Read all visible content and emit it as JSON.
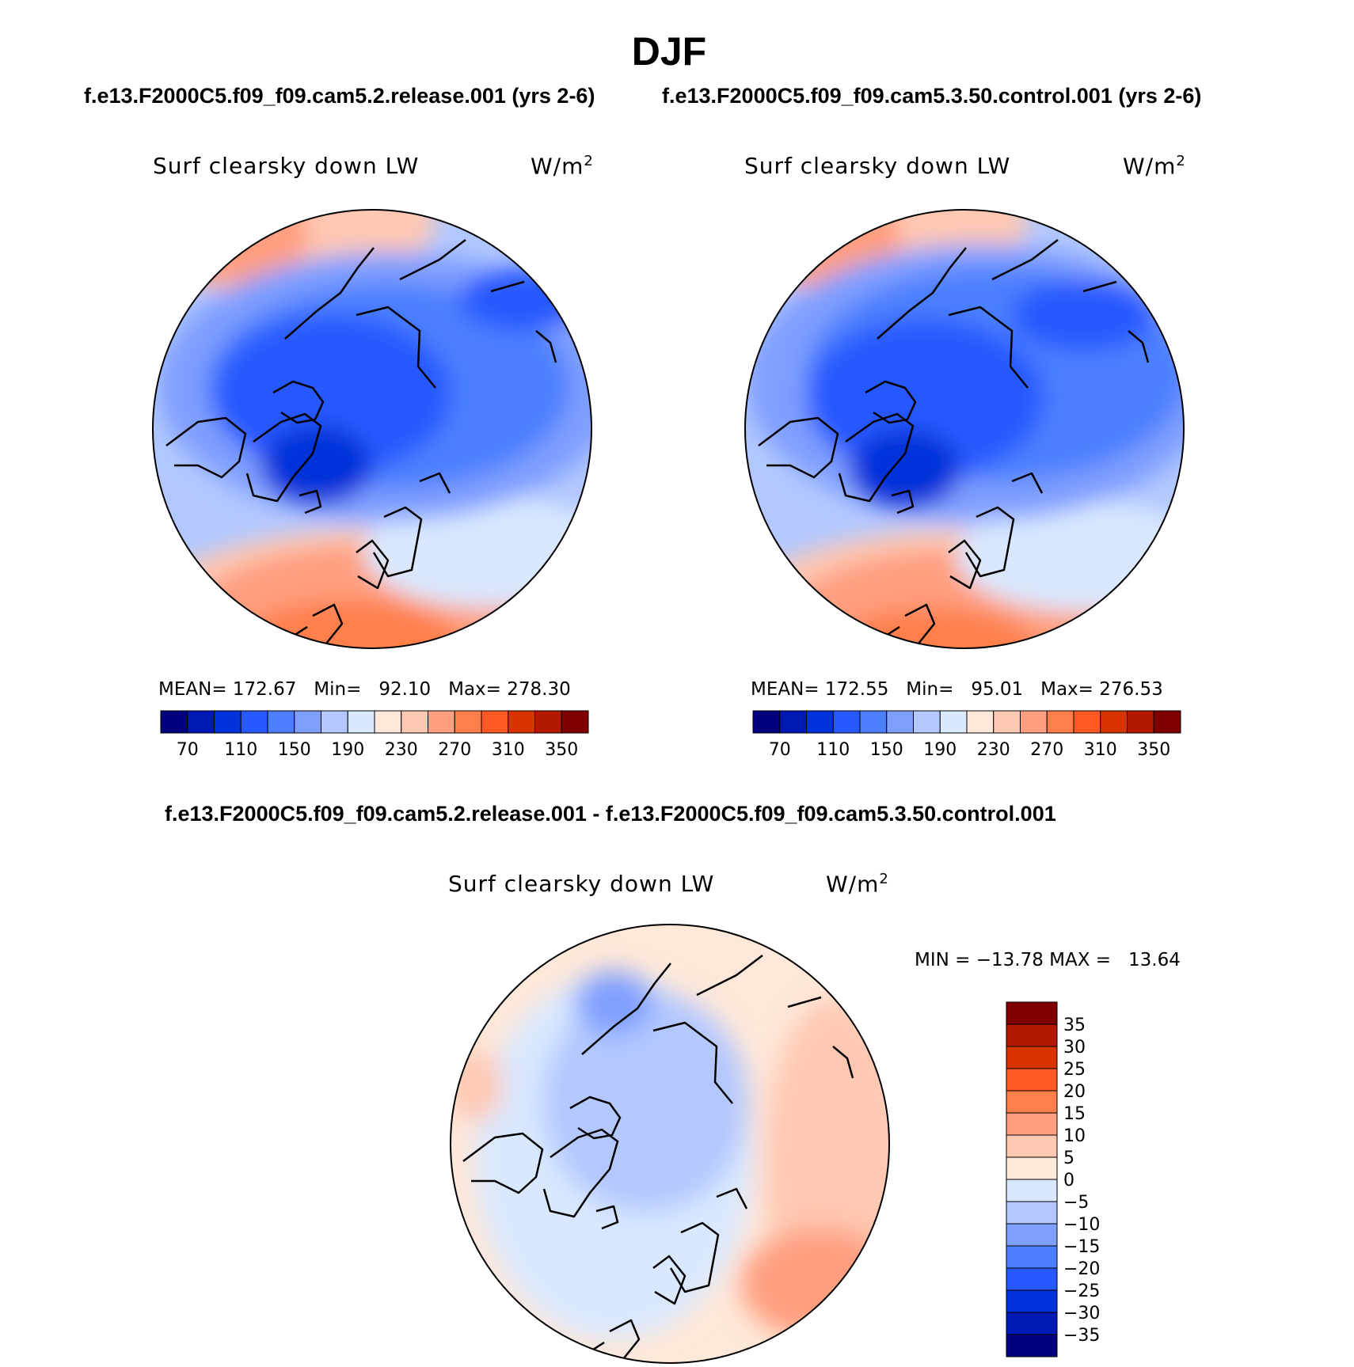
{
  "header": {
    "title": "DJF",
    "case1_title": "f.e13.F2000C5.f09_f09.cam5.2.release.001 (yrs 2-6)",
    "case2_title": "f.e13.F2000C5.f09_f09.cam5.3.50.control.001 (yrs 2-6)",
    "diff_title": "f.e13.F2000C5.f09_f09.cam5.2.release.001 - f.e13.F2000C5.f09_f09.cam5.3.50.control.001"
  },
  "panels": [
    {
      "variable": "Surf clearsky down LW",
      "units_base": "W/m",
      "units_exp": "2",
      "stats": "MEAN= 172.67   Min=   92.10   Max= 278.30"
    },
    {
      "variable": "Surf clearsky down LW",
      "units_base": "W/m",
      "units_exp": "2",
      "stats": "MEAN= 172.55   Min=   95.01   Max= 276.53"
    },
    {
      "variable": "Surf clearsky down LW",
      "units_base": "W/m",
      "units_exp": "2",
      "stats": "MIN = −13.78 MAX =   13.64"
    }
  ],
  "colorbar_abs": {
    "colors": [
      "#00007f",
      "#0019b2",
      "#0033d9",
      "#2659ff",
      "#4c7fff",
      "#7f9fff",
      "#b2c8ff",
      "#d9e8ff",
      "#ffe8d9",
      "#ffc8b2",
      "#ff9f7f",
      "#ff7f4c",
      "#ff5926",
      "#d93300",
      "#b21900",
      "#7f0000"
    ],
    "labels": [
      "70",
      "110",
      "150",
      "190",
      "230",
      "270",
      "310",
      "350"
    ]
  },
  "colorbar_diff": {
    "colors": [
      "#00007f",
      "#0019b2",
      "#0033d9",
      "#2659ff",
      "#4c7fff",
      "#7f9fff",
      "#b2c8ff",
      "#d9e8ff",
      "#ffe8d9",
      "#ffc8b2",
      "#ff9f7f",
      "#ff7f4c",
      "#ff5926",
      "#d93300",
      "#b21900",
      "#7f0000"
    ],
    "labels": [
      "−35",
      "−30",
      "−25",
      "−20",
      "−15",
      "−10",
      "−5",
      "0",
      "5",
      "10",
      "15",
      "20",
      "25",
      "30",
      "35"
    ]
  }
}
